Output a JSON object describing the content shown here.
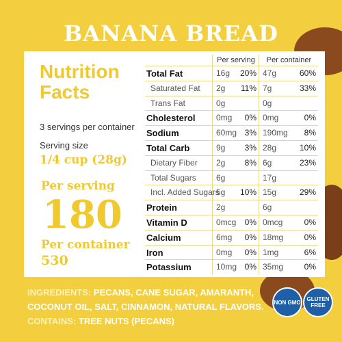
{
  "title": "BANANA BREAD",
  "left": {
    "heading_line1": "Nutrition",
    "heading_line2": "Facts",
    "servings": "3 servings per container",
    "serving_size_label": "Serving size",
    "serving_size": "1/4 cup (28g)",
    "per_serving_label": "Per serving",
    "per_serving_calories": "180",
    "per_container_label": "Per container",
    "per_container_calories": "530"
  },
  "table": {
    "header_serving": "Per serving",
    "header_container": "Per container",
    "rows": [
      {
        "name": "Total Fat",
        "bold": true,
        "s_amt": "16g",
        "s_dv": "20%",
        "c_amt": "47g",
        "c_dv": "60%"
      },
      {
        "name": "Saturated Fat",
        "indent": true,
        "s_amt": "2g",
        "s_dv": "11%",
        "c_amt": "7g",
        "c_dv": "33%"
      },
      {
        "name": "Trans Fat",
        "indent": true,
        "s_amt": "0g",
        "c_amt": "0g"
      },
      {
        "name": "Cholesterol",
        "bold": true,
        "s_amt": "0mg",
        "s_dv": "0%",
        "c_amt": "0mg",
        "c_dv": "0%"
      },
      {
        "name": "Sodium",
        "bold": true,
        "s_amt": "60mg",
        "s_dv": "3%",
        "c_amt": "190mg",
        "c_dv": "8%"
      },
      {
        "name": "Total Carb",
        "bold": true,
        "s_amt": "9g",
        "s_dv": "3%",
        "c_amt": "28g",
        "c_dv": "10%"
      },
      {
        "name": "Dietary Fiber",
        "indent": true,
        "s_amt": "2g",
        "s_dv": "8%",
        "c_amt": "6g",
        "c_dv": "23%"
      },
      {
        "name": "Total Sugars",
        "indent": true,
        "s_amt": "6g",
        "c_amt": "17g"
      },
      {
        "name": "Incl. Added Sugars",
        "indent": true,
        "s_amt": "5g",
        "s_dv": "10%",
        "c_amt": "15g",
        "c_dv": "29%"
      },
      {
        "name": "Protein",
        "bold": true,
        "s_amt": "2g",
        "c_amt": "6g"
      },
      {
        "name": "Vitamin D",
        "bold": true,
        "s_amt": "0mcg",
        "s_dv": "0%",
        "c_amt": "0mcg",
        "c_dv": "0%"
      },
      {
        "name": "Calcium",
        "bold": true,
        "s_amt": "6mg",
        "s_dv": "0%",
        "c_amt": "18mg",
        "c_dv": "0%"
      },
      {
        "name": "Iron",
        "bold": true,
        "s_amt": "0mg",
        "s_dv": "0%",
        "c_amt": "1mg",
        "c_dv": "6%"
      },
      {
        "name": "Potassium",
        "bold": true,
        "s_amt": "10mg",
        "s_dv": "0%",
        "c_amt": "35mg",
        "c_dv": "0%"
      }
    ]
  },
  "ingredients": {
    "label": "INGREDIENTS:",
    "line1": "PECANS, CANE SUGAR, AMARANTH,",
    "line2": "COCONUT OIL, SALT, CINNAMON, NATURAL FLAVORS.",
    "contains_label": "CONTAINS:",
    "contains": "TREE NUTS (PECANS)"
  },
  "badges": {
    "non_gmo": "NON GMO",
    "gluten_free": "GLUTEN FREE"
  }
}
